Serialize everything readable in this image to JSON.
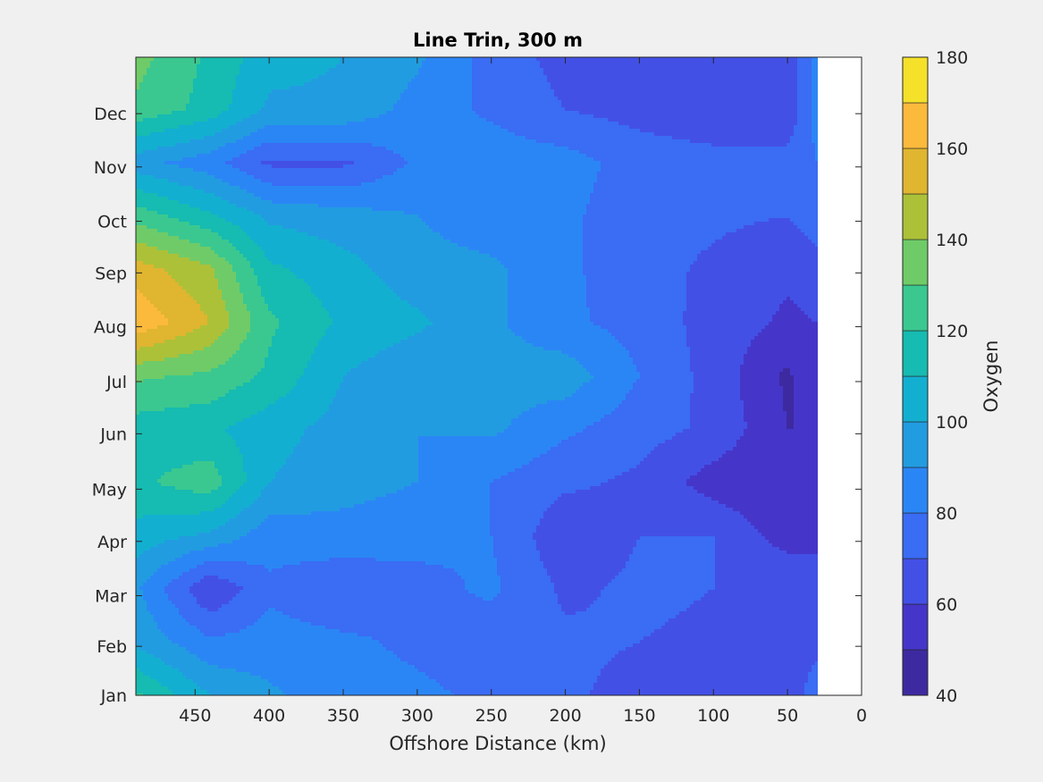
{
  "chart_data": {
    "type": "heatmap",
    "subtype": "filled-contour",
    "title": "Line Trin, 300 m",
    "xlabel": "Offshore Distance (km)",
    "ylabel": "",
    "colorbar_label": "Oxygen",
    "x_axis_reversed": true,
    "xlim": [
      0,
      490
    ],
    "xticks": [
      450,
      400,
      350,
      300,
      250,
      200,
      150,
      100,
      50,
      0
    ],
    "ylim": [
      0,
      11.98
    ],
    "yticks": [
      0,
      0.92,
      1.87,
      2.89,
      3.87,
      4.91,
      5.89,
      6.92,
      7.93,
      8.9,
      9.92,
      10.92
    ],
    "yticklabels": [
      "Jan",
      "Feb",
      "Mar",
      "Apr",
      "May",
      "Jun",
      "Jul",
      "Aug",
      "Sep",
      "Oct",
      "Nov",
      "Dec"
    ],
    "clim": [
      40,
      180
    ],
    "colorbar_ticks": [
      40,
      60,
      80,
      100,
      120,
      140,
      160,
      180
    ],
    "contour_step": 10,
    "levels": [
      {
        "range": [
          40,
          50
        ],
        "color": "#3e2aa0"
      },
      {
        "range": [
          50,
          60
        ],
        "color": "#4536c9"
      },
      {
        "range": [
          60,
          70
        ],
        "color": "#4350e6"
      },
      {
        "range": [
          70,
          80
        ],
        "color": "#3a6cf4"
      },
      {
        "range": [
          80,
          90
        ],
        "color": "#2b86f5"
      },
      {
        "range": [
          90,
          100
        ],
        "color": "#229ce0"
      },
      {
        "range": [
          100,
          110
        ],
        "color": "#13afd1"
      },
      {
        "range": [
          110,
          120
        ],
        "color": "#16bbb1"
      },
      {
        "range": [
          120,
          130
        ],
        "color": "#3ac890"
      },
      {
        "range": [
          130,
          140
        ],
        "color": "#6fcb68"
      },
      {
        "range": [
          140,
          150
        ],
        "color": "#acc138"
      },
      {
        "range": [
          150,
          160
        ],
        "color": "#e0b530"
      },
      {
        "range": [
          160,
          170
        ],
        "color": "#fcba3c"
      },
      {
        "range": [
          170,
          180
        ],
        "color": "#f5e12a"
      }
    ],
    "no_data_region": {
      "x_range": [
        0,
        30
      ],
      "color": "#ffffff"
    },
    "grid": {
      "x": [
        490,
        440,
        400,
        350,
        300,
        250,
        200,
        150,
        100,
        50,
        30
      ],
      "y": [
        0,
        1,
        2,
        3,
        4,
        5,
        6,
        7,
        8,
        9,
        10,
        11,
        12
      ],
      "z": [
        [
          122,
          100,
          92,
          84,
          82,
          78,
          72,
          66,
          62,
          60,
          78
        ],
        [
          98,
          82,
          84,
          82,
          78,
          74,
          72,
          70,
          68,
          66,
          66
        ],
        [
          92,
          60,
          78,
          72,
          76,
          82,
          68,
          72,
          70,
          70,
          70
        ],
        [
          106,
          98,
          84,
          86,
          84,
          80,
          62,
          70,
          70,
          55,
          55
        ],
        [
          118,
          126,
          100,
          94,
          90,
          80,
          72,
          68,
          55,
          50,
          50
        ],
        [
          115,
          112,
          104,
          96,
          90,
          92,
          82,
          74,
          68,
          50,
          50
        ],
        [
          132,
          128,
          118,
          100,
          92,
          94,
          96,
          80,
          66,
          48,
          60
        ],
        [
          168,
          150,
          122,
          108,
          102,
          92,
          82,
          76,
          66,
          58,
          60
        ],
        [
          155,
          142,
          112,
          104,
          94,
          92,
          82,
          74,
          68,
          62,
          66
        ],
        [
          126,
          112,
          98,
          94,
          90,
          84,
          82,
          74,
          72,
          70,
          76
        ],
        [
          94,
          84,
          68,
          68,
          82,
          86,
          84,
          76,
          74,
          74,
          80
        ],
        [
          128,
          116,
          98,
          98,
          86,
          78,
          70,
          66,
          62,
          62,
          84
        ],
        [
          134,
          118,
          104,
          100,
          92,
          76,
          66,
          62,
          60,
          62,
          86
        ]
      ]
    }
  }
}
